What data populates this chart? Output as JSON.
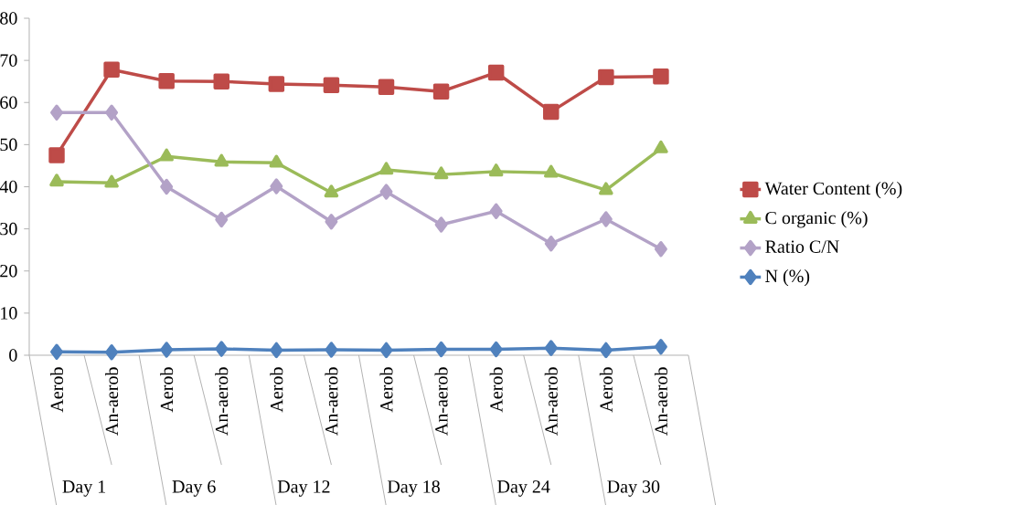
{
  "chart_data": {
    "type": "line",
    "categories": [
      "Aerob",
      "An-aerob",
      "Aerob",
      "An-aerob",
      "Aerob",
      "An-aerob",
      "Aerob",
      "An-aerob",
      "Aerob",
      "An-aerob",
      "Aerob",
      "An-aerob"
    ],
    "annotations": [
      "Day 1",
      "Day 6",
      "Day 12",
      "Day 18",
      "Day 24",
      "Day 30"
    ],
    "series": [
      {
        "name": "Water Content (%)",
        "color": "#be4b48",
        "marker": "square",
        "values": [
          47.5,
          67.8,
          65.1,
          65.0,
          64.4,
          64.1,
          63.7,
          62.6,
          67.1,
          57.8,
          66.0,
          66.2
        ]
      },
      {
        "name": "C organic (%)",
        "color": "#9bbb59",
        "marker": "triangle",
        "values": [
          41.2,
          40.9,
          47.2,
          45.9,
          45.7,
          38.6,
          44.0,
          42.9,
          43.6,
          43.3,
          39.2,
          49.1
        ]
      },
      {
        "name": "Ratio C/N",
        "color": "#b3a2c7",
        "marker": "diamond",
        "values": [
          57.6,
          57.6,
          40.0,
          32.2,
          40.1,
          31.7,
          38.8,
          31.0,
          34.2,
          26.5,
          32.3,
          25.2
        ]
      },
      {
        "name": "N (%)",
        "color": "#4f81bd",
        "marker": "diamond",
        "values": [
          0.8,
          0.7,
          1.3,
          1.5,
          1.2,
          1.3,
          1.2,
          1.4,
          1.4,
          1.7,
          1.2,
          2.0
        ]
      }
    ],
    "ylim": [
      0,
      80
    ],
    "yticks": [
      0,
      10,
      20,
      30,
      40,
      50,
      60,
      70,
      80
    ],
    "grid": false,
    "legend": "right"
  }
}
